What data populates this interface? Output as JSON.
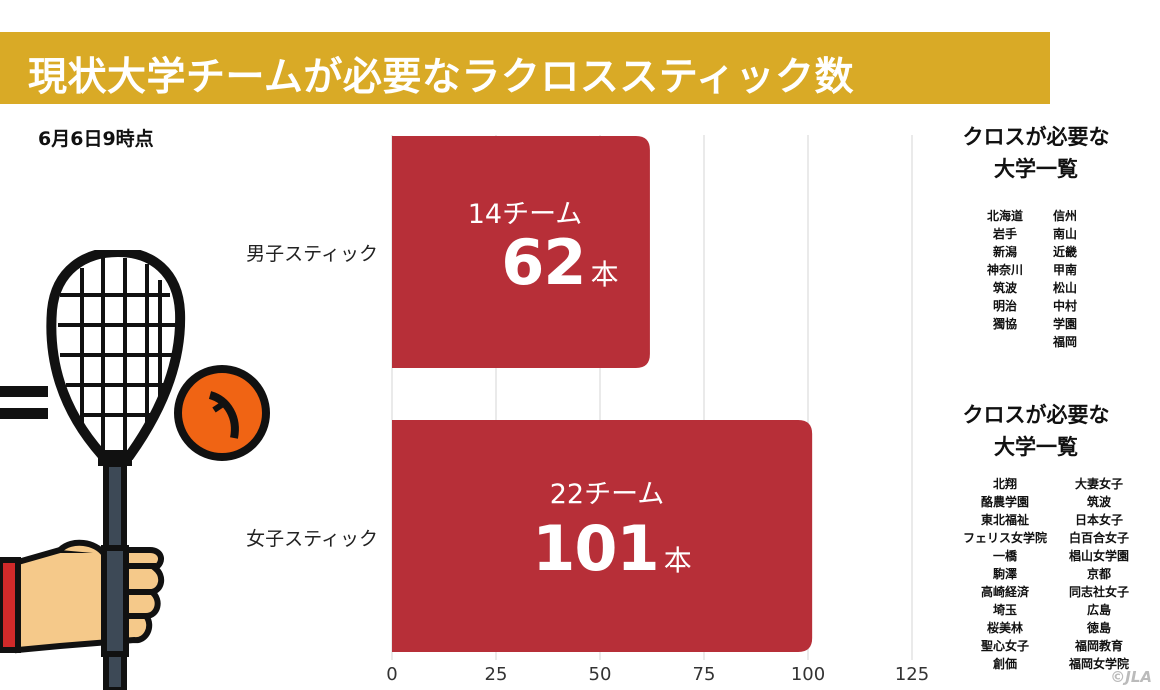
{
  "title": "現状大学チームが必要なラクロススティック数",
  "timestamp": "6月6日9時点",
  "chart_data": {
    "type": "bar",
    "orientation": "horizontal",
    "categories": [
      "男子スティック",
      "女子スティック"
    ],
    "values": [
      62,
      101
    ],
    "bar_team_labels": [
      "14チーム",
      "22チーム"
    ],
    "bar_value_labels": [
      "62",
      "101"
    ],
    "unit": "本",
    "xlim": [
      0,
      125
    ],
    "xticks": [
      "0",
      "25",
      "50",
      "75",
      "100",
      "125"
    ],
    "grid": true,
    "bar_color": "#b72f38"
  },
  "sidebar": {
    "men": {
      "heading_line1": "クロスが必要な",
      "heading_line2": "大学一覧",
      "col1": [
        "北海道",
        "岩手",
        "新潟",
        "神奈川",
        "筑波",
        "明治",
        "獨協"
      ],
      "col2": [
        "信州",
        "南山",
        "近畿",
        "甲南",
        "松山",
        "中村",
        "学園",
        "福岡"
      ]
    },
    "women": {
      "heading_line1": "クロスが必要な",
      "heading_line2": "大学一覧",
      "col1": [
        "北翔",
        "酪農学園",
        "東北福祉",
        "フェリス女学院",
        "一橋",
        "駒澤",
        "高崎経済",
        "埼玉",
        "桜美林",
        "聖心女子",
        "創価"
      ],
      "col2": [
        "大妻女子",
        "筑波",
        "日本女子",
        "白百合女子",
        "椙山女学園",
        "京都",
        "同志社女子",
        "広島",
        "徳島",
        "福岡教育",
        "福岡女学院"
      ]
    }
  },
  "watermark": "©JLA",
  "illustration": {
    "icons": [
      "lacrosse-stick-icon",
      "hand-icon",
      "ball-icon",
      "motion-lines-icon"
    ],
    "colors": {
      "ball": "#f06414",
      "stick_head": "#111111",
      "shaft": "#3d4956",
      "hand": "#f5c98a",
      "sleeve": "#d12a2a"
    }
  }
}
